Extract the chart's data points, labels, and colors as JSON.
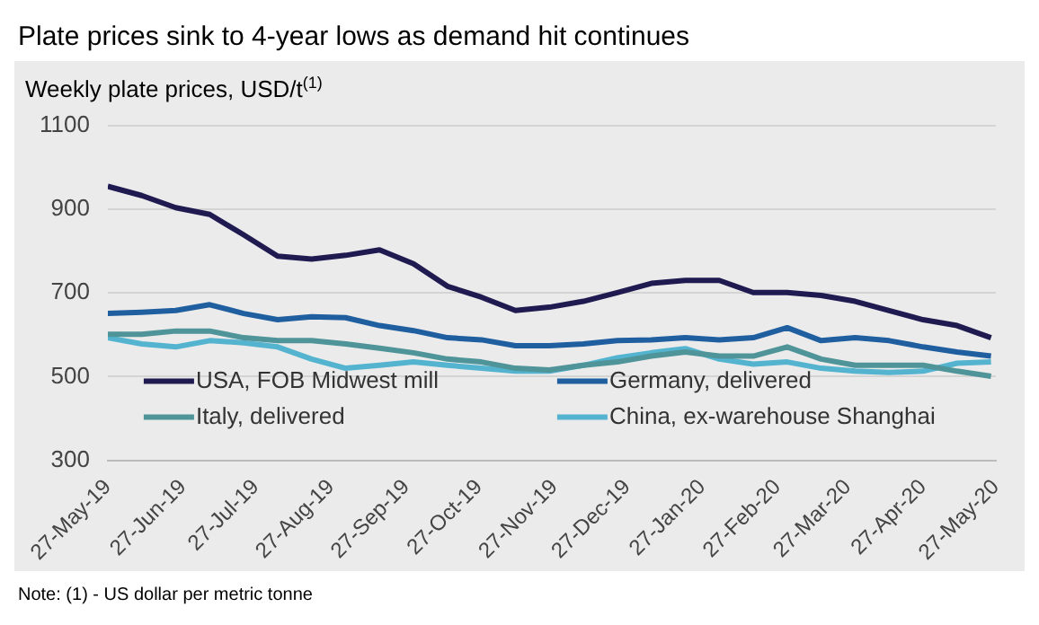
{
  "chart_data": {
    "type": "line",
    "title": "Plate prices sink to 4-year lows as demand hit continues",
    "subtitle": "Weekly plate prices, USD/t$^{(1)}$",
    "x": [
      "2019-05-27",
      "2019-06-10",
      "2019-06-24",
      "2019-07-08",
      "2019-07-22",
      "2019-08-05",
      "2019-08-19",
      "2019-09-02",
      "2019-09-16",
      "2019-09-30",
      "2019-10-14",
      "2019-10-28",
      "2019-11-11",
      "2019-11-25",
      "2019-12-09",
      "2019-12-23",
      "2020-01-06",
      "2020-01-20",
      "2020-02-03",
      "2020-02-17",
      "2020-03-02",
      "2020-03-16",
      "2020-03-30",
      "2020-04-13",
      "2020-04-27",
      "2020-05-11",
      "2020-05-25"
    ],
    "series": [
      {
        "name": "USA, FOB Midwest mill",
        "color": "#1f1a4f",
        "values": [
          955,
          933,
          904,
          888,
          839,
          788,
          781,
          790,
          803,
          770,
          716,
          690,
          658,
          666,
          680,
          701,
          723,
          730,
          730,
          701,
          701,
          694,
          680,
          658,
          636,
          622,
          593
        ]
      },
      {
        "name": "Germany, delivered",
        "color": "#1f5fa0",
        "values": [
          651,
          654,
          658,
          672,
          651,
          636,
          643,
          641,
          622,
          610,
          593,
          588,
          574,
          574,
          578,
          586,
          588,
          593,
          588,
          593,
          617,
          586,
          593,
          586,
          571,
          559,
          549
        ]
      },
      {
        "name": "Italy, delivered",
        "color": "#4e9499",
        "values": [
          601,
          601,
          609,
          609,
          593,
          586,
          586,
          578,
          568,
          557,
          542,
          535,
          520,
          516,
          527,
          535,
          549,
          559,
          549,
          549,
          571,
          542,
          527,
          527,
          527,
          513,
          501
        ]
      },
      {
        "name": "China, ex-warehouse Shanghai",
        "color": "#54b4d0",
        "values": [
          593,
          578,
          571,
          586,
          581,
          571,
          542,
          520,
          527,
          535,
          527,
          520,
          513,
          513,
          527,
          545,
          557,
          567,
          542,
          530,
          535,
          520,
          513,
          510,
          513,
          532,
          535
        ]
      }
    ],
    "xlim": [
      "2019-05-27",
      "2020-05-27"
    ],
    "xticks": [
      {
        "value": "2019-05-27",
        "label": "27-May-19"
      },
      {
        "value": "2019-06-27",
        "label": "27-Jun-19"
      },
      {
        "value": "2019-07-27",
        "label": "27-Jul-19"
      },
      {
        "value": "2019-08-27",
        "label": "27-Aug-19"
      },
      {
        "value": "2019-09-27",
        "label": "27-Sep-19"
      },
      {
        "value": "2019-10-27",
        "label": "27-Oct-19"
      },
      {
        "value": "2019-11-27",
        "label": "27-Nov-19"
      },
      {
        "value": "2019-12-27",
        "label": "27-Dec-19"
      },
      {
        "value": "2020-01-27",
        "label": "27-Jan-20"
      },
      {
        "value": "2020-02-27",
        "label": "27-Feb-20"
      },
      {
        "value": "2020-03-27",
        "label": "27-Mar-20"
      },
      {
        "value": "2020-04-27",
        "label": "27-Apr-20"
      },
      {
        "value": "2020-05-27",
        "label": "27-May-20"
      }
    ],
    "ylim": [
      300,
      1100
    ],
    "yticks": [
      300,
      500,
      700,
      900,
      1100
    ],
    "grid": "y",
    "legend": "bottom",
    "marker": "none",
    "line_style": "solid",
    "annotations": [
      "Note: (1) - US dollar per metric tonne"
    ]
  }
}
